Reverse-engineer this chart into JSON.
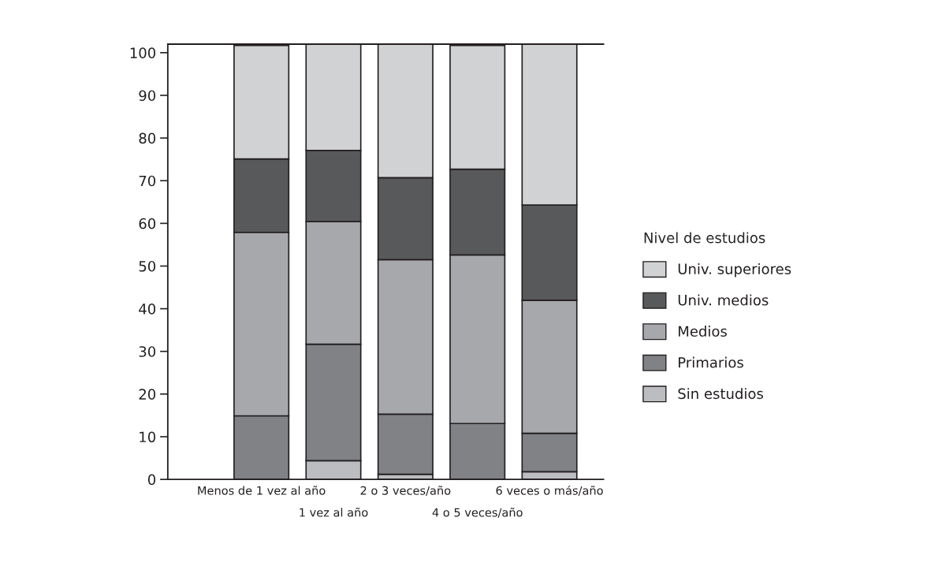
{
  "chart_data": {
    "type": "bar",
    "stacked": true,
    "legend_title": "Nivel de estudios",
    "legend": "right",
    "categories": [
      "Menos de 1 vez al año",
      "1 vez al año",
      "2 o 3 veces/año",
      "4 o 5 veces/año",
      "6 veces o más/año"
    ],
    "series": [
      {
        "name": "Sin estudios",
        "color": "#bcbdc0",
        "values": [
          null,
          4.4,
          1.2,
          null,
          1.8
        ]
      },
      {
        "name": "Primarios",
        "color": "#808285",
        "values": [
          14.9,
          27.3,
          14.1,
          13.1,
          9.0
        ]
      },
      {
        "name": "Medios",
        "color": "#a7a8ab",
        "values": [
          43.0,
          28.7,
          36.2,
          39.5,
          31.2
        ]
      },
      {
        "name": "Univ. medios",
        "color": "#58595b",
        "values": [
          17.2,
          16.7,
          19.2,
          20.1,
          22.3
        ]
      },
      {
        "name": "Univ. superiores",
        "color": "#d1d2d4",
        "values": [
          26.6,
          24.9,
          31.3,
          29.0,
          37.7
        ]
      }
    ],
    "ylim": [
      0,
      102
    ],
    "yticks": [
      0,
      10,
      20,
      30,
      40,
      50,
      60,
      70,
      80,
      90,
      100
    ],
    "grid": false
  }
}
